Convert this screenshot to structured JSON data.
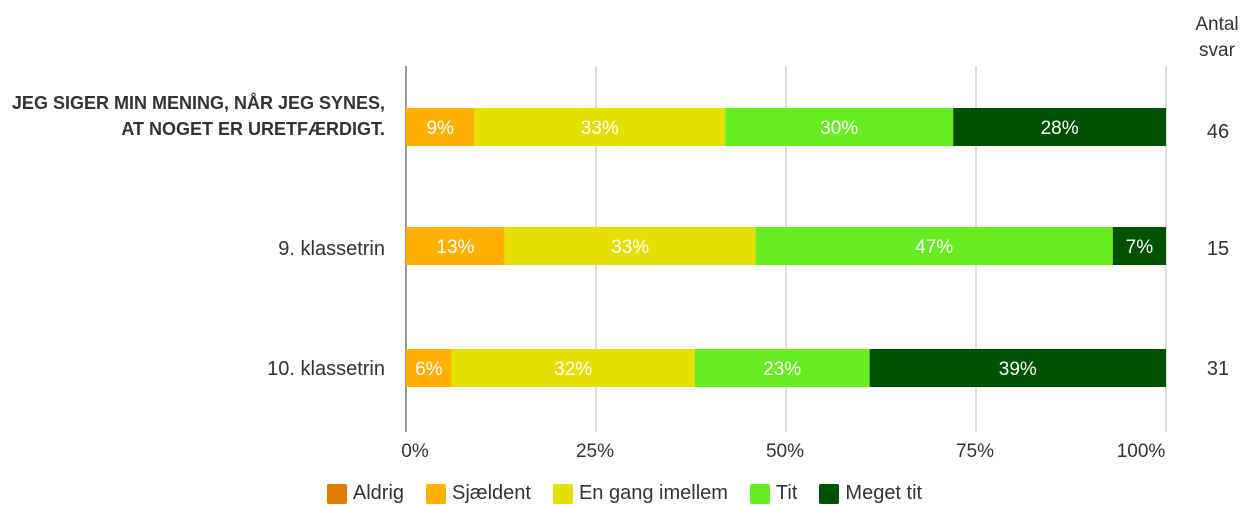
{
  "chart_data": {
    "type": "bar",
    "orientation": "horizontal",
    "stacked": true,
    "categories": [
      "JEG SIGER MIN MENING, NÅR JEG SYNES, AT NOGET ER URETFÆRDIGT.",
      "9. klassetrin",
      "10. klassetrin"
    ],
    "series": [
      {
        "name": "Aldrig",
        "color": "#e07b00",
        "values": [
          0,
          0,
          0
        ]
      },
      {
        "name": "Sjældent",
        "color": "#ffb000",
        "values": [
          9,
          13,
          6
        ]
      },
      {
        "name": "En gang imellem",
        "color": "#e6e000",
        "values": [
          33,
          33,
          32
        ]
      },
      {
        "name": "Tit",
        "color": "#66ee22",
        "values": [
          30,
          47,
          23
        ]
      },
      {
        "name": "Meget tit",
        "color": "#005200",
        "values": [
          28,
          7,
          39
        ]
      }
    ],
    "counts_title": "Antal svar",
    "counts": [
      46,
      15,
      31
    ],
    "xticks": [
      "0%",
      "25%",
      "50%",
      "75%",
      "100%"
    ],
    "xlim": [
      0,
      100
    ],
    "grid": true,
    "legend_position": "bottom"
  }
}
